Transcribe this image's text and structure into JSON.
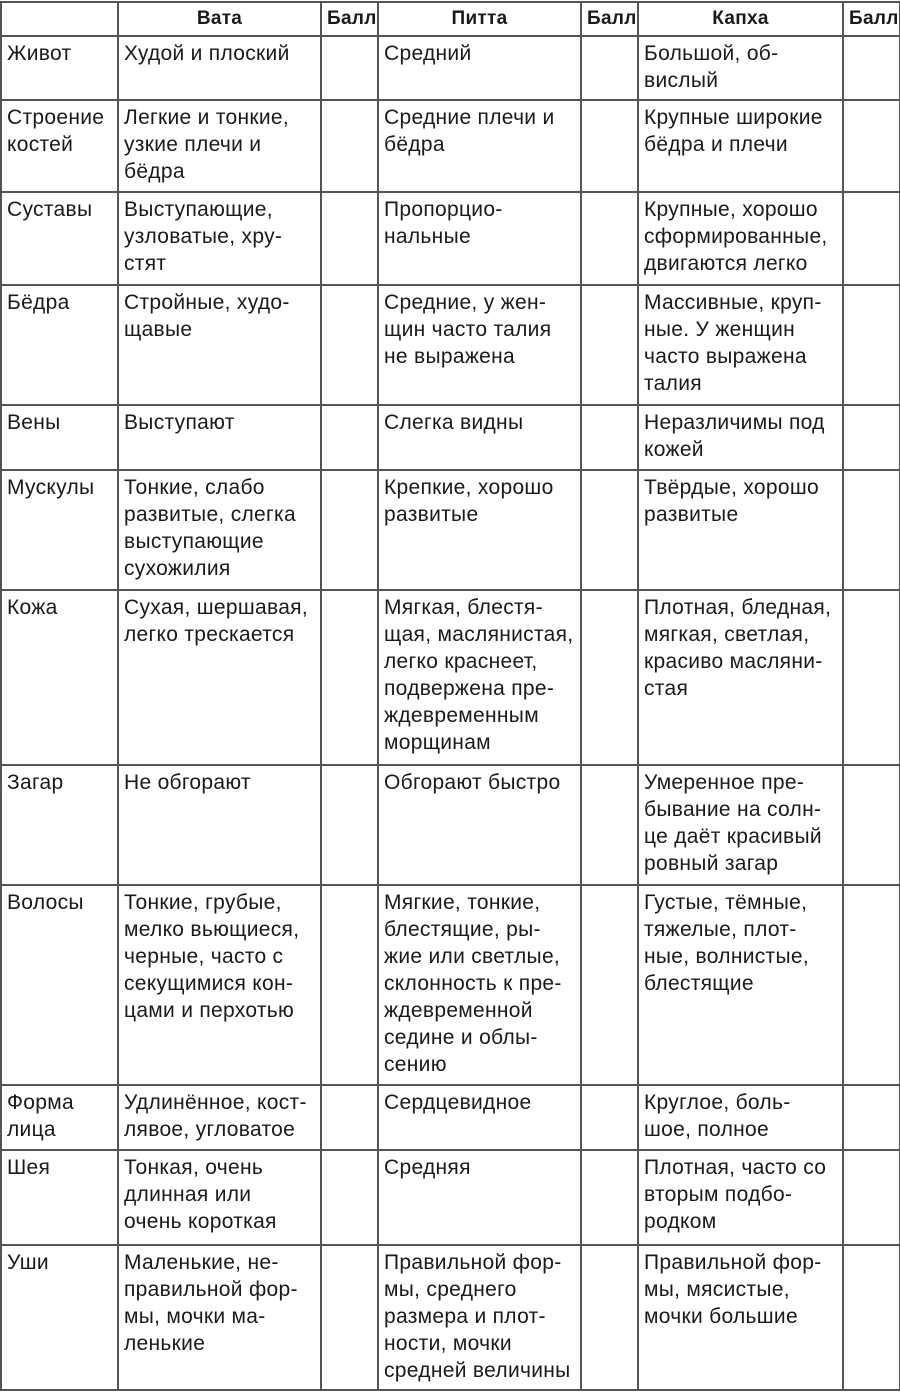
{
  "headers": [
    "",
    "Вата",
    "Балл",
    "Питта",
    "Балл",
    "Капха",
    "Балл"
  ],
  "rows": [
    {
      "feature": "Живот",
      "vata": "Худой и плоский",
      "pitta": "Средний",
      "kapha": "Большой, об-\nвислый"
    },
    {
      "feature": "Строение\nкостей",
      "vata": "Легкие и тонкие,\nузкие плечи и\nбёдра",
      "pitta": "Средние плечи и\nбёдра",
      "kapha": "Крупные широкие\nбёдра и плечи"
    },
    {
      "feature": "Суставы",
      "vata": "Выступающие,\nузловатые, хру-\nстят",
      "pitta": "Пропорцио-\nнальные",
      "kapha": "Крупные, хорошо\nсформированные,\nдвигаются легко"
    },
    {
      "feature": "Бёдра",
      "vata": "Стройные, худо-\nщавые",
      "pitta": "Средние, у жен-\nщин часто талия\nне выражена",
      "kapha": "Массивные, круп-\nные. У женщин\nчасто выражена\nталия"
    },
    {
      "feature": "Вены",
      "vata": "Выступают",
      "pitta": "Слегка видны",
      "kapha": "Неразличимы под\nкожей"
    },
    {
      "feature": "Мускулы",
      "vata": "Тонкие, слабо\nразвитые, слегка\nвыступающие\nсухожилия",
      "pitta": "Крепкие, хорошо\nразвитые",
      "kapha": "Твёрдые, хорошо\nразвитые"
    },
    {
      "feature": "Кожа",
      "vata": "Сухая, шершавая,\nлегко трескается",
      "pitta": "Мягкая, блестя-\nщая, маслянистая,\nлегко краснеет,\nподвержена пре-\nждевременным\nморщинам",
      "kapha": "Плотная, бледная,\nмягкая, светлая,\nкрасиво масляни-\nстая"
    },
    {
      "feature": "Загар",
      "vata": "Не обгорают",
      "pitta": "Обгорают быстро",
      "kapha": "Умеренное пре-\nбывание на солн-\nце даёт красивый\nровный загар"
    },
    {
      "feature": "Волосы",
      "vata": "Тонкие, грубые,\nмелко вьющиеся,\nчерные, часто с\nсекущимися кон-\nцами и перхотью",
      "pitta": "Мягкие, тонкие,\nблестящие, ры-\nжие или светлые,\nсклонность к пре-\nждевременной\nседине и облы-\nсению",
      "kapha": "Густые, тёмные,\nтяжелые, плот-\nные, волнистые,\nблестящие"
    },
    {
      "feature": "Форма\nлица",
      "vata": "Удлинённое, кост-\nлявое, угловатое",
      "pitta": "Сердцевидное",
      "kapha": "Круглое, боль-\nшое, полное"
    },
    {
      "feature": "Шея",
      "vata": "Тонкая, очень\nдлинная или\nочень короткая",
      "pitta": "Средняя",
      "kapha": "Плотная, часто со\nвторым подбо-\nродком"
    },
    {
      "feature": "Уши",
      "vata": "Маленькие, не-\nправильной фор-\nмы, мочки ма-\nленькие",
      "pitta": "Правильной фор-\nмы, среднего\nразмера и плот-\nности, мочки\nсредней величины",
      "kapha": "Правильной фор-\nмы, мясистые,\nмочки большие"
    }
  ]
}
